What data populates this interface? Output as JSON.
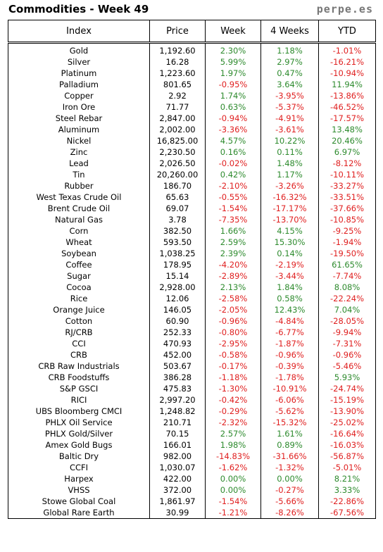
{
  "header": {
    "title": "Commodities - Week 49",
    "brand": "perpe.es"
  },
  "columns": [
    "Index",
    "Price",
    "Week",
    "4 Weeks",
    "YTD"
  ],
  "colors": {
    "positive": "#2e8b2e",
    "negative": "#e02020"
  },
  "rows": [
    [
      "Gold",
      "1,192.60",
      "2.30%",
      "1.18%",
      "-1.01%"
    ],
    [
      "Silver",
      "16.28",
      "5.99%",
      "2.97%",
      "-16.21%"
    ],
    [
      "Platinum",
      "1,223.60",
      "1.97%",
      "0.47%",
      "-10.94%"
    ],
    [
      "Palladium",
      "801.65",
      "-0.95%",
      "3.64%",
      "11.94%"
    ],
    [
      "Copper",
      "2.92",
      "1.74%",
      "-3.95%",
      "-13.86%"
    ],
    [
      "Iron Ore",
      "71.77",
      "0.63%",
      "-5.37%",
      "-46.52%"
    ],
    [
      "Steel Rebar",
      "2,847.00",
      "-0.94%",
      "-4.91%",
      "-17.57%"
    ],
    [
      "Aluminum",
      "2,002.00",
      "-3.36%",
      "-3.61%",
      "13.48%"
    ],
    [
      "Nickel",
      "16,825.00",
      "4.57%",
      "10.22%",
      "20.46%"
    ],
    [
      "Zinc",
      "2,230.50",
      "0.16%",
      "0.11%",
      "6.97%"
    ],
    [
      "Lead",
      "2,026.50",
      "-0.02%",
      "1.48%",
      "-8.12%"
    ],
    [
      "Tin",
      "20,260.00",
      "0.42%",
      "1.17%",
      "-10.11%"
    ],
    [
      "Rubber",
      "186.70",
      "-2.10%",
      "-3.26%",
      "-33.27%"
    ],
    [
      "West Texas Crude Oil",
      "65.63",
      "-0.55%",
      "-16.32%",
      "-33.51%"
    ],
    [
      "Brent Crude Oil",
      "69.07",
      "-1.54%",
      "-17.17%",
      "-37.66%"
    ],
    [
      "Natural Gas",
      "3.78",
      "-7.35%",
      "-13.70%",
      "-10.85%"
    ],
    [
      "Corn",
      "382.50",
      "1.66%",
      "4.15%",
      "-9.25%"
    ],
    [
      "Wheat",
      "593.50",
      "2.59%",
      "15.30%",
      "-1.94%"
    ],
    [
      "Soybean",
      "1,038.25",
      "2.39%",
      "0.14%",
      "-19.50%"
    ],
    [
      "Coffee",
      "178.95",
      "-4.20%",
      "-2.19%",
      "61.65%"
    ],
    [
      "Sugar",
      "15.14",
      "-2.89%",
      "-3.44%",
      "-7.74%"
    ],
    [
      "Cocoa",
      "2,928.00",
      "2.13%",
      "1.84%",
      "8.08%"
    ],
    [
      "Rice",
      "12.06",
      "-2.58%",
      "0.58%",
      "-22.24%"
    ],
    [
      "Orange Juice",
      "146.05",
      "-2.05%",
      "12.43%",
      "7.04%"
    ],
    [
      "Cotton",
      "60.90",
      "-0.96%",
      "-4.84%",
      "-28.05%"
    ],
    [
      "RJ/CRB",
      "252.33",
      "-0.80%",
      "-6.77%",
      "-9.94%"
    ],
    [
      "CCI",
      "470.93",
      "-2.95%",
      "-1.87%",
      "-7.31%"
    ],
    [
      "CRB",
      "452.00",
      "-0.58%",
      "-0.96%",
      "-0.96%"
    ],
    [
      "CRB Raw Industrials",
      "503.67",
      "-0.17%",
      "-0.39%",
      "-5.46%"
    ],
    [
      "CRB Foodstuffs",
      "386.28",
      "-1.18%",
      "-1.78%",
      "5.93%"
    ],
    [
      "S&P GSCI",
      "475.83",
      "-1.30%",
      "-10.91%",
      "-24.74%"
    ],
    [
      "RICI",
      "2,997.20",
      "-0.42%",
      "-6.06%",
      "-15.19%"
    ],
    [
      "UBS Bloomberg CMCI",
      "1,248.82",
      "-0.29%",
      "-5.62%",
      "-13.90%"
    ],
    [
      "PHLX Oil Service",
      "210.71",
      "-2.32%",
      "-15.32%",
      "-25.02%"
    ],
    [
      "PHLX Gold/Silver",
      "70.15",
      "2.57%",
      "1.61%",
      "-16.64%"
    ],
    [
      "Amex Gold Bugs",
      "166.01",
      "1.98%",
      "0.89%",
      "-16.03%"
    ],
    [
      "Baltic Dry",
      "982.00",
      "-14.83%",
      "-31.66%",
      "-56.87%"
    ],
    [
      "CCFI",
      "1,030.07",
      "-1.62%",
      "-1.32%",
      "-5.01%"
    ],
    [
      "Harpex",
      "422.00",
      "0.00%",
      "0.00%",
      "8.21%"
    ],
    [
      "VHSS",
      "372.00",
      "0.00%",
      "-0.27%",
      "3.33%"
    ],
    [
      "Stowe Global Coal",
      "1,861.97",
      "-1.54%",
      "-5.66%",
      "-22.86%"
    ],
    [
      "Global Rare Earth",
      "30.99",
      "-1.21%",
      "-8.26%",
      "-67.56%"
    ]
  ]
}
